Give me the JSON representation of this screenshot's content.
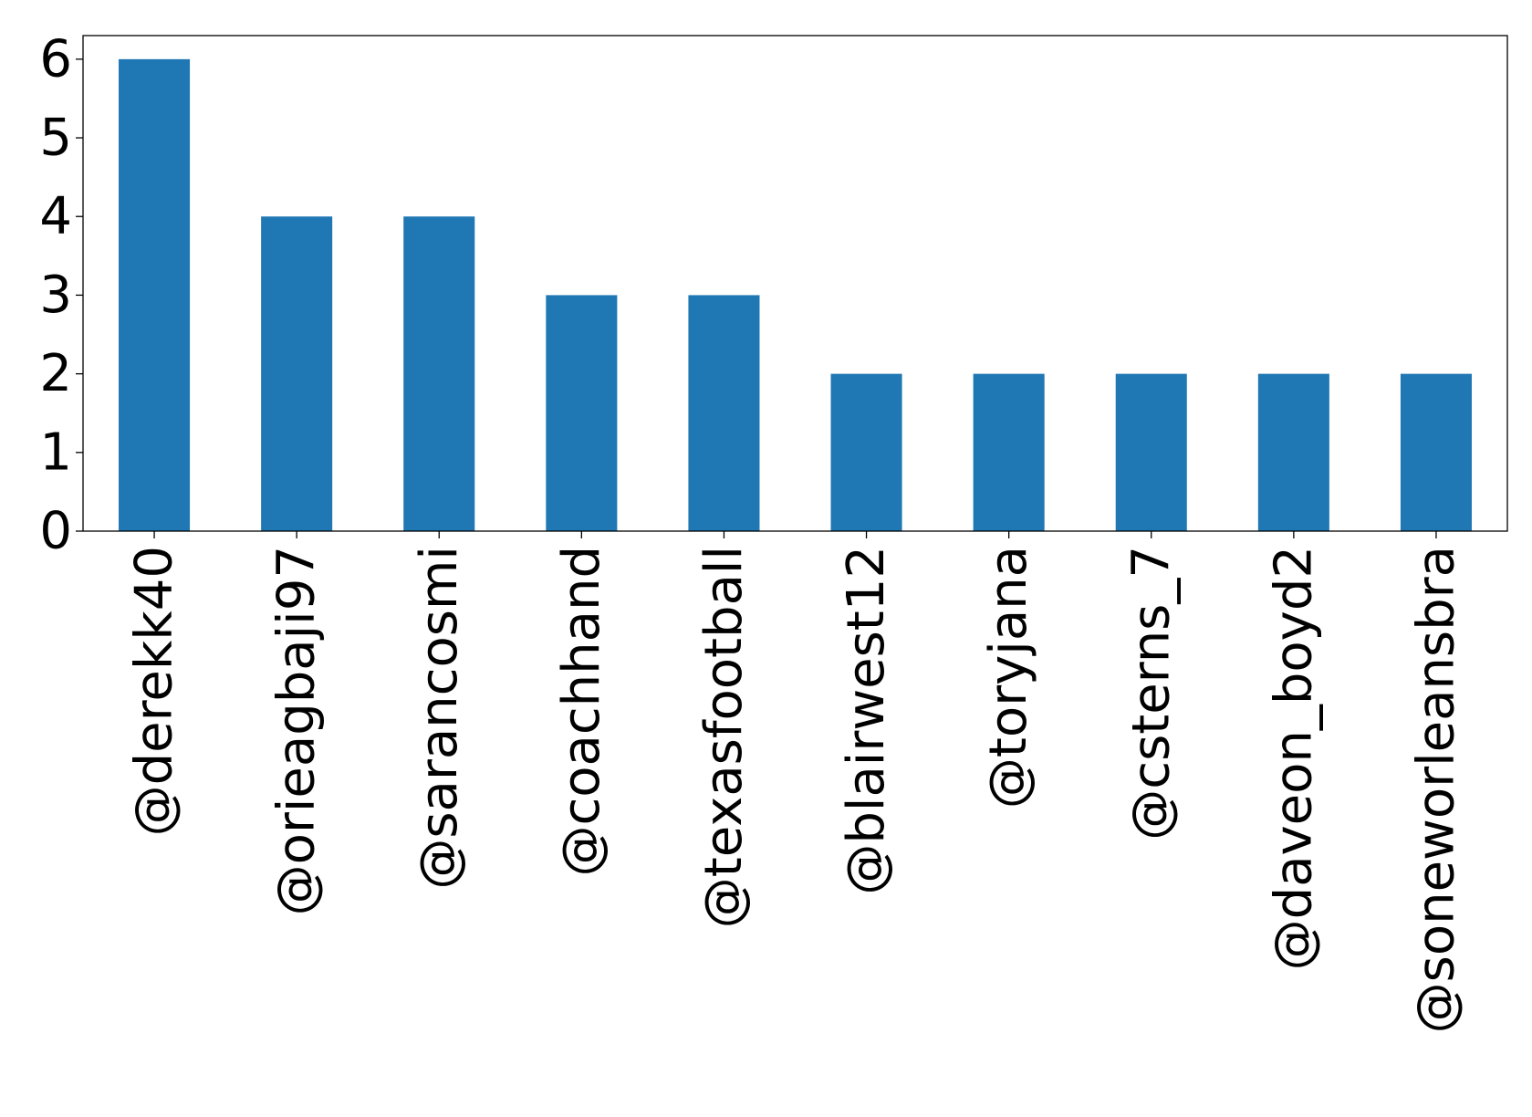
{
  "chart_data": {
    "type": "bar",
    "categories": [
      "@derekk40",
      "@orieagbaji97",
      "@sarancosmi",
      "@coachhand",
      "@texasfootball",
      "@blairwest12",
      "@toryjana",
      "@csterns_7",
      "@daveon_boyd2",
      "@soneworleansbra"
    ],
    "values": [
      6,
      4,
      4,
      3,
      3,
      2,
      2,
      2,
      2,
      2
    ],
    "yticks": [
      "0",
      "1",
      "2",
      "3",
      "4",
      "5",
      "6"
    ],
    "ylim": [
      0,
      6.3
    ],
    "grid": false,
    "legend": "none",
    "bar_color": "#1f77b4"
  }
}
